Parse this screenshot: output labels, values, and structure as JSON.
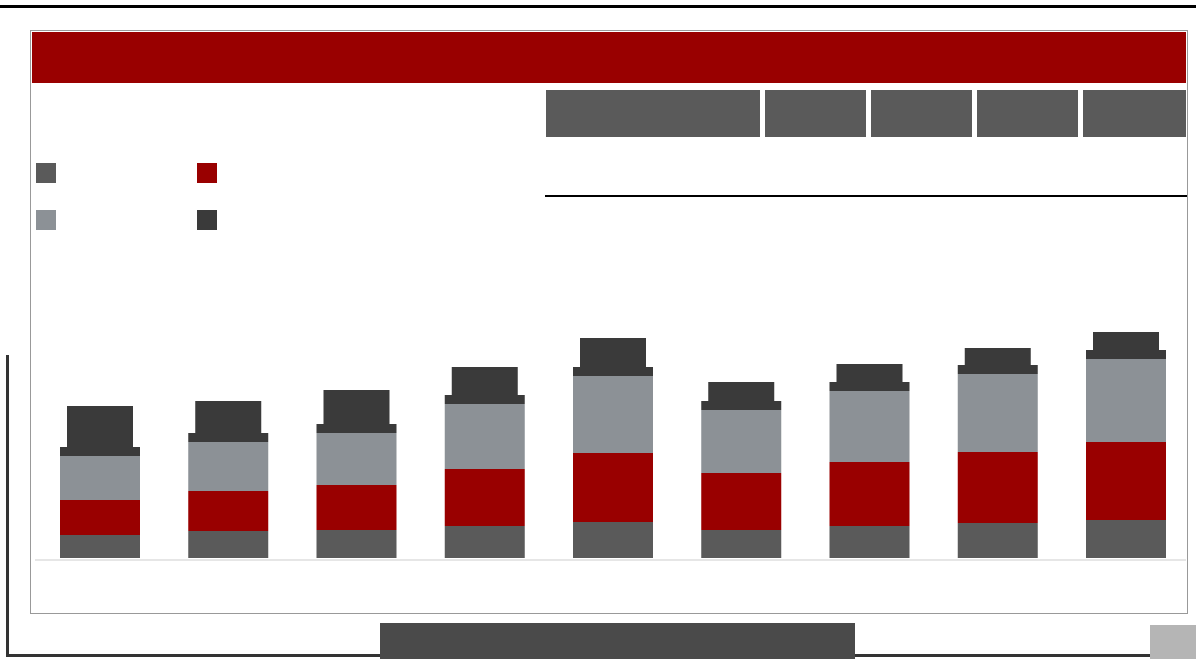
{
  "chart_data": {
    "type": "bar",
    "stacked": true,
    "categories": [
      null,
      null,
      null,
      null,
      null,
      null,
      null,
      null,
      null
    ],
    "series": [
      {
        "color": "#5a5a5a",
        "values": [
          23,
          27,
          28,
          32,
          36,
          28,
          32,
          35,
          38
        ]
      },
      {
        "color": "#990000",
        "values": [
          35,
          40,
          45,
          57,
          69,
          57,
          64,
          71,
          78
        ]
      },
      {
        "color": "#8c9196",
        "values": [
          44,
          49,
          52,
          65,
          77,
          63,
          71,
          78,
          83
        ]
      },
      {
        "color": "#3a3a3a",
        "values": [
          50,
          41,
          43,
          37,
          38,
          28,
          27,
          26,
          27
        ]
      }
    ],
    "ylim": [
      0,
      300
    ]
  }
}
